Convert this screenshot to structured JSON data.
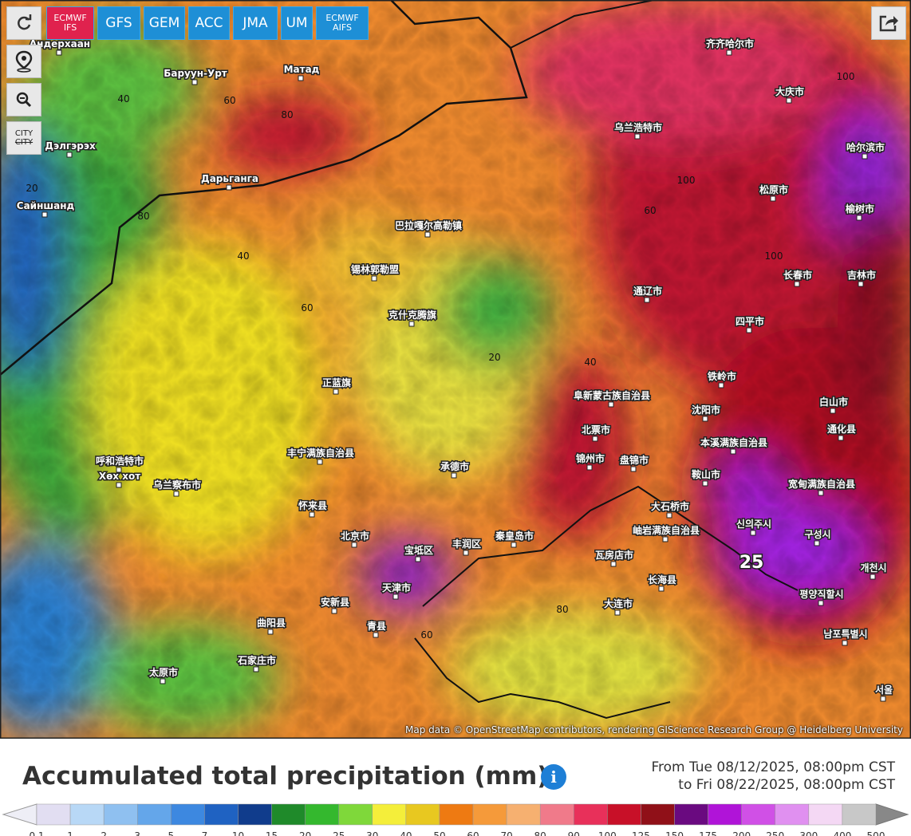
{
  "toolbar": {
    "models": [
      {
        "lines": [
          "ECMWF",
          "IFS"
        ],
        "color": "#e0224e"
      },
      {
        "lines": [
          "GFS"
        ],
        "color": "#1e8fd6"
      },
      {
        "lines": [
          "GEM"
        ],
        "color": "#1e8fd6"
      },
      {
        "lines": [
          "ACC"
        ],
        "color": "#1e8fd6"
      },
      {
        "lines": [
          "JMA"
        ],
        "color": "#1e8fd6"
      },
      {
        "lines": [
          "UM"
        ],
        "color": "#1e8fd6"
      },
      {
        "lines": [
          "ECMWF",
          "AIFS"
        ],
        "color": "#1e8fd6"
      }
    ],
    "city_toggle": [
      "CITY",
      "CITY"
    ]
  },
  "map": {
    "places": [
      "Баруун-Урт",
      "Матад",
      "Дарьганга",
      "Сайншанд",
      "Дэлгэрэх",
      "Андерхаан",
      "呼和浩特市",
      "Хөх хот",
      "乌兰察布市",
      "北京市",
      "天津市",
      "宝坻区",
      "丰润区",
      "秦皇岛市",
      "承德市",
      "锦州市",
      "盘锦市",
      "北票市",
      "阜新蒙古族自治县",
      "沈阳市",
      "铁岭市",
      "本溪满族自治县",
      "鞍山市",
      "大石桥市",
      "岫岩满族自治县",
      "宽甸满族自治县",
      "瓦房店市",
      "长海县",
      "大连市",
      "白山市",
      "通化县",
      "四平市",
      "长春市",
      "吉林市",
      "榆树市",
      "松原市",
      "哈尔滨市",
      "大庆市",
      "齐齐哈尔市",
      "乌兰浩特市",
      "通辽市",
      "巴拉嘎尔高勒镇",
      "锡林郭勒盟",
      "克什克腾旗",
      "正蓝旗",
      "丰宁满族自治县",
      "怀来县",
      "安新县",
      "青县",
      "曲阳县",
      "石家庄市",
      "太原市",
      "신의주시",
      "구성시",
      "개천시",
      "평양직할시",
      "남포특별시",
      "서울"
    ],
    "contours": [
      "40",
      "60",
      "80",
      "100",
      "20",
      "40",
      "60",
      "80",
      "100",
      "60",
      "40",
      "20",
      "100",
      "80",
      "60",
      "25"
    ],
    "attribution": "Map data © OpenStreetMap contributors, rendering GIScience Research Group @ Heidelberg University"
  },
  "panel": {
    "title": "Accumulated total precipitation (mm)",
    "info": "i",
    "from": "From Tue 08/12/2025, 08:00pm CST",
    "to": "to Fri 08/22/2025, 08:00pm CST",
    "legend": {
      "colors": [
        "#e2def2",
        "#b8d8f6",
        "#8fc0f0",
        "#64a6ea",
        "#3d88e0",
        "#1f62c2",
        "#103c8c",
        "#1f8a2a",
        "#34b82e",
        "#7fd83a",
        "#f4ee3a",
        "#e8c820",
        "#ee7a12",
        "#f59a3a",
        "#f6b070",
        "#f07a8a",
        "#e8305a",
        "#c81028",
        "#901018",
        "#6a0a80",
        "#b014d8",
        "#d050e6",
        "#e090f0",
        "#f4d8f4",
        "#c8c8c8"
      ],
      "labels": [
        "0.1",
        "1",
        "2",
        "3",
        "5",
        "7",
        "10",
        "15",
        "20",
        "25",
        "30",
        "40",
        "50",
        "60",
        "70",
        "80",
        "90",
        "100",
        "125",
        "150",
        "175",
        "200",
        "250",
        "300",
        "400",
        "500"
      ]
    }
  }
}
